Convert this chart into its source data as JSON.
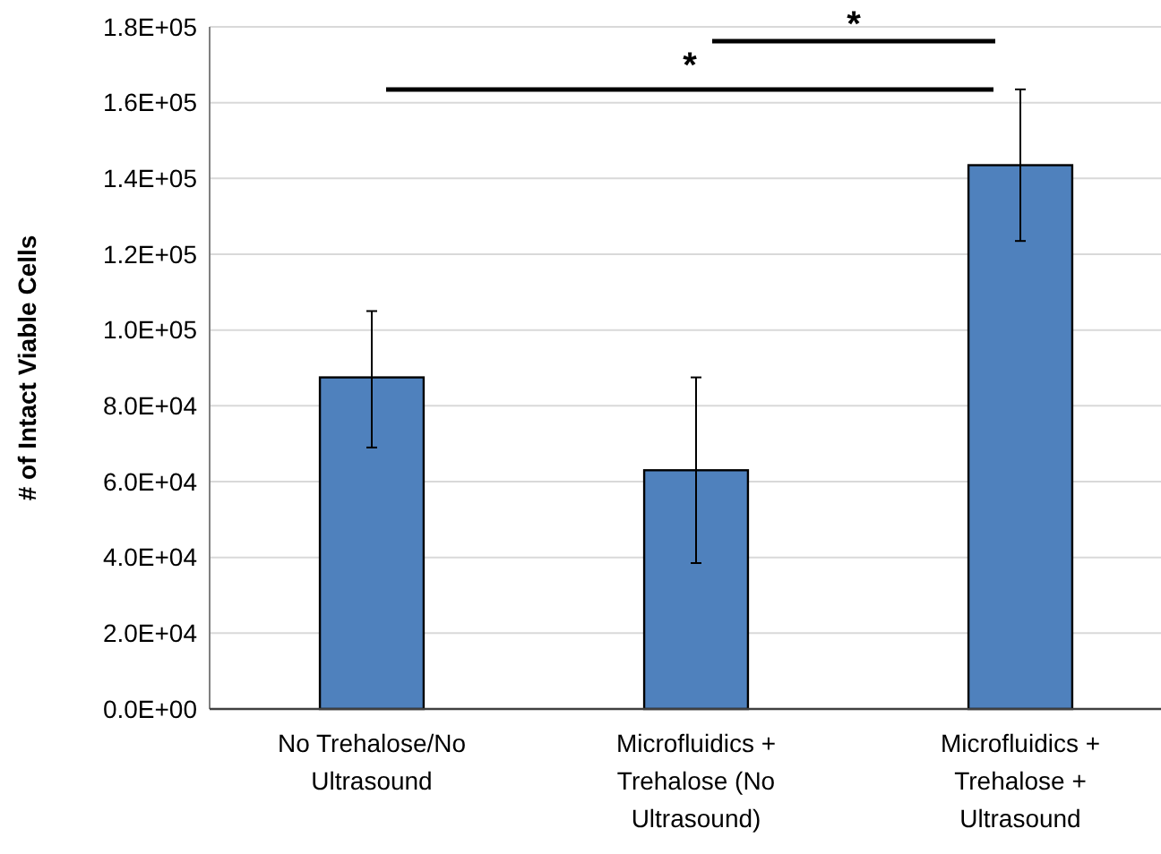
{
  "chart_data": {
    "type": "bar",
    "ylabel": "# of Intact Viable Cells",
    "categories": [
      "No Trehalose/No Ultrasound",
      "Microfluidics + Trehalose (No Ultrasound)",
      "Microfluidics + Trehalose + Ultrasound"
    ],
    "values": [
      87500,
      63000,
      143500
    ],
    "errors": [
      [
        69000,
        105000
      ],
      [
        38500,
        87500
      ],
      [
        123500,
        163500
      ]
    ],
    "color": "#4f81bd",
    "ylim": [
      0,
      180000
    ],
    "yticks": [
      {
        "value": 0,
        "label": "0.0E+00"
      },
      {
        "value": 20000,
        "label": "2.0E+04"
      },
      {
        "value": 40000,
        "label": "4.0E+04"
      },
      {
        "value": 60000,
        "label": "6.0E+04"
      },
      {
        "value": 80000,
        "label": "8.0E+04"
      },
      {
        "value": 100000,
        "label": "1.0E+05"
      },
      {
        "value": 120000,
        "label": "1.2E+05"
      },
      {
        "value": 140000,
        "label": "1.4E+05"
      },
      {
        "value": 160000,
        "label": "1.6E+05"
      },
      {
        "value": 180000,
        "label": "1.8E+05"
      }
    ],
    "grid": "y",
    "annotations": [
      "*",
      "*"
    ]
  }
}
